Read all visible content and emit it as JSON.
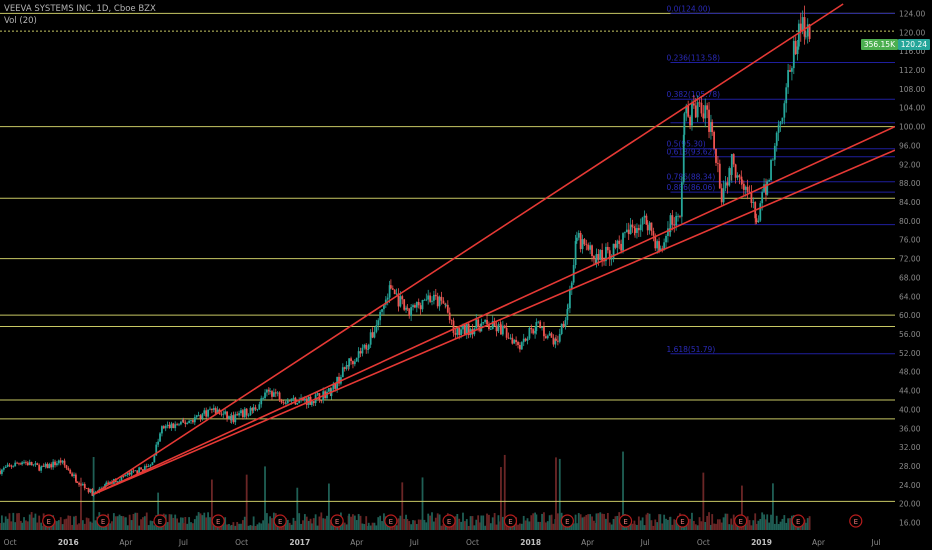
{
  "header": {
    "title": "VEEVA SYSTEMS INC, 1D, Cboe BZX",
    "vol_label": "Vol (20)"
  },
  "badges": {
    "price": "120.24",
    "volume": "356.15K"
  },
  "colors": {
    "background": "#000000",
    "candle_up": "#26a69a",
    "candle_down": "#ef5350",
    "trendline": "#e53935",
    "horizontal_level": "#c8c864",
    "fib_level": "#1f1f9e",
    "earnings_marker": "#b71c1c"
  },
  "chart_data": {
    "type": "candlestick",
    "title": "VEEVA SYSTEMS INC, 1D, Cboe BZX",
    "y_axis_side": "right",
    "ylim": [
      14,
      126
    ],
    "y_ticks": [
      "124.00",
      "120.00",
      "116.00",
      "112.00",
      "108.00",
      "104.00",
      "100.00",
      "96.00",
      "92.00",
      "88.00",
      "84.00",
      "80.00",
      "76.00",
      "72.00",
      "68.00",
      "64.00",
      "60.00",
      "56.00",
      "52.00",
      "48.00",
      "44.00",
      "40.00",
      "36.00",
      "32.00",
      "28.00",
      "24.00",
      "20.00",
      "16.00"
    ],
    "x_ticks": [
      "Oct",
      "2016",
      "Apr",
      "Jul",
      "Oct",
      "2017",
      "Apr",
      "Jul",
      "Oct",
      "2018",
      "Apr",
      "Jul",
      "Oct",
      "2019",
      "Apr",
      "Jul"
    ],
    "x_range": [
      "2015-09-15",
      "2019-07-31"
    ],
    "price_path": [
      [
        "2015-09-15",
        27
      ],
      [
        "2015-10-20",
        29
      ],
      [
        "2015-11-20",
        27.5
      ],
      [
        "2015-12-20",
        29
      ],
      [
        "2016-01-15",
        25
      ],
      [
        "2016-02-10",
        22
      ],
      [
        "2016-03-01",
        24
      ],
      [
        "2016-04-01",
        26
      ],
      [
        "2016-05-10",
        28
      ],
      [
        "2016-05-28",
        36
      ],
      [
        "2016-07-01",
        37
      ],
      [
        "2016-08-15",
        40
      ],
      [
        "2016-09-15",
        38
      ],
      [
        "2016-10-20",
        40
      ],
      [
        "2016-11-15",
        44
      ],
      [
        "2016-12-10",
        42
      ],
      [
        "2017-01-20",
        42
      ],
      [
        "2017-02-20",
        44
      ],
      [
        "2017-03-20",
        50
      ],
      [
        "2017-04-20",
        54
      ],
      [
        "2017-05-25",
        66
      ],
      [
        "2017-06-20",
        60
      ],
      [
        "2017-07-20",
        64
      ],
      [
        "2017-08-20",
        62
      ],
      [
        "2017-09-01",
        56
      ],
      [
        "2017-10-15",
        58
      ],
      [
        "2017-11-15",
        57
      ],
      [
        "2017-12-15",
        54
      ],
      [
        "2018-01-10",
        58
      ],
      [
        "2018-02-10",
        54
      ],
      [
        "2018-03-01",
        62
      ],
      [
        "2018-03-15",
        76
      ],
      [
        "2018-04-15",
        72
      ],
      [
        "2018-05-15",
        74
      ],
      [
        "2018-06-15",
        79
      ],
      [
        "2018-07-05",
        80
      ],
      [
        "2018-07-25",
        73
      ],
      [
        "2018-08-10",
        80
      ],
      [
        "2018-08-25",
        80
      ],
      [
        "2018-09-01",
        102
      ],
      [
        "2018-09-25",
        104
      ],
      [
        "2018-10-15",
        100
      ],
      [
        "2018-10-30",
        86
      ],
      [
        "2018-11-15",
        92
      ],
      [
        "2018-12-01",
        90
      ],
      [
        "2018-12-24",
        80
      ],
      [
        "2019-01-10",
        88
      ],
      [
        "2019-01-25",
        98
      ],
      [
        "2019-02-15",
        112
      ],
      [
        "2019-03-01",
        120
      ],
      [
        "2019-03-12",
        122
      ],
      [
        "2019-03-20",
        120.24
      ]
    ],
    "horizontal_levels": [
      124,
      120.24,
      100,
      84.8,
      72,
      60,
      57.6,
      42,
      38,
      20.5
    ],
    "fib_levels": [
      {
        "label": "0.0(124.00)",
        "value": 124
      },
      {
        "label": "0.236(113.58)",
        "value": 113.6
      },
      {
        "label": "0.382(105.78)",
        "value": 105.8
      },
      {
        "label": "",
        "value": 100.8
      },
      {
        "label": "0.5(95.30)",
        "value": 95.3
      },
      {
        "label": "0.618(93.62)",
        "value": 93.6
      },
      {
        "label": "0.786(88.34)",
        "value": 88.3
      },
      {
        "label": "0.886(86.06)",
        "value": 86.1
      },
      {
        "label": "",
        "value": 79.2
      },
      {
        "label": "1.618(51.79)",
        "value": 51.8
      }
    ],
    "trendlines": [
      {
        "start": [
          "2016-02-10",
          22
        ],
        "end": [
          "2019-05-10",
          126
        ]
      },
      {
        "start": [
          "2016-02-10",
          22
        ],
        "end": [
          "2019-07-31",
          100
        ]
      },
      {
        "start": [
          "2016-02-10",
          22
        ],
        "end": [
          "2019-07-31",
          95
        ]
      }
    ],
    "earnings_dates": [
      "2015-12-01",
      "2016-02-25",
      "2016-05-25",
      "2016-08-25",
      "2016-12-01",
      "2017-03-01",
      "2017-05-25",
      "2017-08-25",
      "2017-11-30",
      "2018-02-28",
      "2018-05-31",
      "2018-08-29",
      "2018-11-29",
      "2019-02-28",
      "2019-05-30"
    ],
    "earnings_label": "E"
  }
}
